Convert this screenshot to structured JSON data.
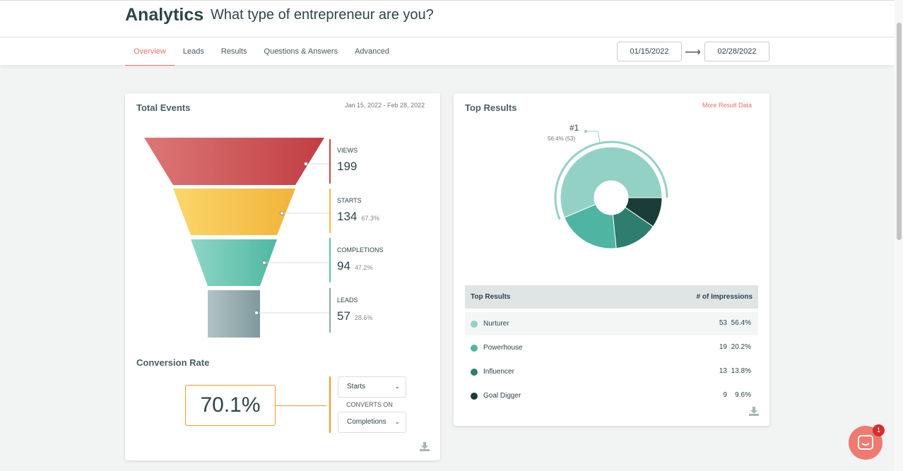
{
  "header": {
    "title": "Analytics",
    "subtitle": "What type of entrepreneur are you?",
    "tabs": [
      "Overview",
      "Leads",
      "Results",
      "Questions & Answers",
      "Advanced"
    ],
    "start_date": "01/15/2022",
    "end_date": "02/28/2022",
    "arrow": "⟶"
  },
  "total_events": {
    "title": "Total Events",
    "range": "Jan 15, 2022 - Feb 28, 2022",
    "stages": [
      {
        "label": "VIEWS",
        "value": "199",
        "pct": ""
      },
      {
        "label": "STARTS",
        "value": "134",
        "pct": "67.3%"
      },
      {
        "label": "COMPLETIONS",
        "value": "94",
        "pct": "47.2%"
      },
      {
        "label": "LEADS",
        "value": "57",
        "pct": "28.6%"
      }
    ]
  },
  "conversion": {
    "title": "Conversion Rate",
    "value": "70.1%",
    "from": "Starts",
    "converts_on": "CONVERTS ON",
    "to": "Completions",
    "chevron": "⌄"
  },
  "top_results": {
    "title": "Top Results",
    "more_link": "More Result Data",
    "rank": "#1",
    "rank_detail": "56.4% (53)",
    "col_result": "Top Results",
    "col_impressions": "# of Impressions",
    "rows": [
      {
        "name": "Nurturer",
        "count": "53",
        "pct": "56.4%",
        "color": "#94d1c5"
      },
      {
        "name": "Powerhouse",
        "count": "19",
        "pct": "20.2%",
        "color": "#4fb5a2"
      },
      {
        "name": "Influencer",
        "count": "13",
        "pct": "13.8%",
        "color": "#2e7d6e"
      },
      {
        "name": "Goal Digger",
        "count": "9",
        "pct": "9.6%",
        "color": "#1a3d37"
      }
    ]
  },
  "chat": {
    "badge": "1"
  },
  "colors": {
    "accent": "#e8706a",
    "views": "#c9464b",
    "starts": "#f2b840",
    "completions": "#5cc3ad",
    "leads": "#8fa7aa",
    "conversion": "#f0962f"
  }
}
